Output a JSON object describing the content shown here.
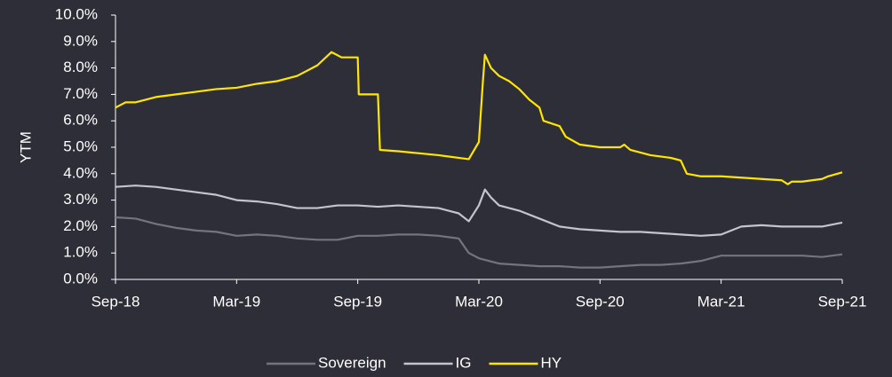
{
  "chart_data": {
    "type": "line",
    "y_label": "YTM",
    "xlim": [
      0,
      36
    ],
    "xticks": [
      {
        "value": 0,
        "label": "Sep-18"
      },
      {
        "value": 6,
        "label": "Mar-19"
      },
      {
        "value": 12,
        "label": "Sep-19"
      },
      {
        "value": 18,
        "label": "Mar-20"
      },
      {
        "value": 24,
        "label": "Sep-20"
      },
      {
        "value": 30,
        "label": "Mar-21"
      },
      {
        "value": 36,
        "label": "Sep-21"
      }
    ],
    "ylim": [
      0,
      10
    ],
    "yticks": [
      {
        "value": 0,
        "label": "0.0%"
      },
      {
        "value": 1,
        "label": "1.0%"
      },
      {
        "value": 2,
        "label": "2.0%"
      },
      {
        "value": 3,
        "label": "3.0%"
      },
      {
        "value": 4,
        "label": "4.0%"
      },
      {
        "value": 5,
        "label": "5.0%"
      },
      {
        "value": 6,
        "label": "6.0%"
      },
      {
        "value": 7,
        "label": "7.0%"
      },
      {
        "value": 8,
        "label": "8.0%"
      },
      {
        "value": 9,
        "label": "9.0%"
      },
      {
        "value": 10,
        "label": "10.0%"
      }
    ],
    "series": [
      {
        "name": "Sovereign",
        "color": "#747480",
        "x": [
          0,
          1,
          2,
          3,
          4,
          5,
          6,
          7,
          8,
          9,
          10,
          11,
          12,
          13,
          14,
          15,
          16,
          17,
          17.5,
          18,
          18.5,
          19,
          20,
          21,
          22,
          23,
          24,
          25,
          26,
          27,
          28,
          29,
          30,
          31,
          32,
          33,
          34,
          35,
          36
        ],
        "values": [
          2.35,
          2.3,
          2.1,
          1.95,
          1.85,
          1.8,
          1.65,
          1.7,
          1.65,
          1.55,
          1.5,
          1.5,
          1.65,
          1.65,
          1.7,
          1.7,
          1.65,
          1.55,
          1.0,
          0.8,
          0.7,
          0.6,
          0.55,
          0.5,
          0.5,
          0.45,
          0.45,
          0.5,
          0.55,
          0.55,
          0.6,
          0.7,
          0.9,
          0.9,
          0.9,
          0.9,
          0.9,
          0.85,
          0.95
        ]
      },
      {
        "name": "IG",
        "color": "#c4c4cd",
        "x": [
          0,
          1,
          2,
          3,
          4,
          5,
          6,
          7,
          8,
          9,
          10,
          11,
          12,
          13,
          14,
          15,
          16,
          17,
          17.5,
          18,
          18.3,
          18.6,
          19,
          20,
          21,
          22,
          23,
          24,
          25,
          26,
          27,
          28,
          29,
          30,
          31,
          32,
          33,
          34,
          35,
          36
        ],
        "values": [
          3.5,
          3.55,
          3.5,
          3.4,
          3.3,
          3.2,
          3.0,
          2.95,
          2.85,
          2.7,
          2.7,
          2.8,
          2.8,
          2.75,
          2.8,
          2.75,
          2.7,
          2.5,
          2.2,
          2.8,
          3.4,
          3.1,
          2.8,
          2.6,
          2.3,
          2.0,
          1.9,
          1.85,
          1.8,
          1.8,
          1.75,
          1.7,
          1.65,
          1.7,
          2.0,
          2.05,
          2.0,
          2.0,
          2.0,
          2.15
        ]
      },
      {
        "name": "HY",
        "color": "#ffe600",
        "x": [
          0,
          0.5,
          1,
          2,
          3,
          4,
          5,
          6,
          7,
          8,
          9,
          10,
          10.7,
          11.2,
          12,
          12.05,
          13,
          13.1,
          14,
          16,
          17,
          17.5,
          18,
          18.2,
          18.3,
          18.6,
          19,
          19.5,
          20,
          20.5,
          21,
          21.2,
          22,
          22.3,
          23,
          24,
          25,
          25.2,
          25.5,
          26.5,
          27.5,
          28,
          28.3,
          29,
          30,
          31,
          32,
          33,
          33.3,
          33.5,
          34,
          35,
          35.3,
          36
        ],
        "values": [
          6.5,
          6.7,
          6.7,
          6.9,
          7.0,
          7.1,
          7.2,
          7.25,
          7.4,
          7.5,
          7.7,
          8.1,
          8.6,
          8.4,
          8.4,
          7.0,
          7.0,
          4.9,
          4.85,
          4.7,
          4.6,
          4.55,
          5.2,
          7.5,
          8.5,
          8.0,
          7.7,
          7.5,
          7.2,
          6.8,
          6.5,
          6.0,
          5.8,
          5.4,
          5.1,
          5.0,
          5.0,
          5.1,
          4.9,
          4.7,
          4.6,
          4.5,
          4.0,
          3.9,
          3.9,
          3.85,
          3.8,
          3.75,
          3.6,
          3.7,
          3.7,
          3.8,
          3.9,
          4.05
        ]
      }
    ]
  }
}
